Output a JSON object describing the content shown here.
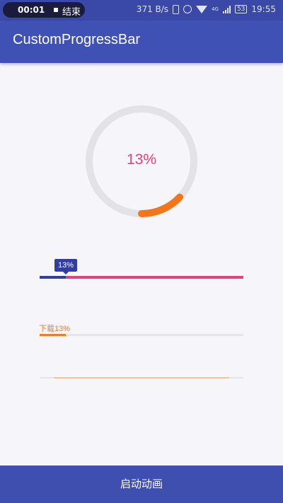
{
  "status_bar": {
    "recording_time": "00:01",
    "recording_end": "结束",
    "net_speed": "371 B/s",
    "network_type": "4G",
    "battery": "53",
    "clock": "19:55"
  },
  "app_bar": {
    "title": "CustomProgressBar"
  },
  "circle_progress": {
    "label": "13%",
    "percent": 13,
    "track_color": "#e3e3e7",
    "fill_color": "#f5761a",
    "text_color": "#e8407a"
  },
  "tooltip_progress": {
    "label": "13%",
    "percent": 13,
    "fill_color": "#303f9f",
    "track_color": "#e8407a"
  },
  "download_progress": {
    "label": "下载13%",
    "percent": 13,
    "fill_color": "#f07c2a",
    "track_color": "#e6e6ea"
  },
  "thin_progress": {
    "fill_color": "#f5c49c",
    "track_color": "#e4e4e8"
  },
  "action": {
    "start_label": "启动动画"
  }
}
